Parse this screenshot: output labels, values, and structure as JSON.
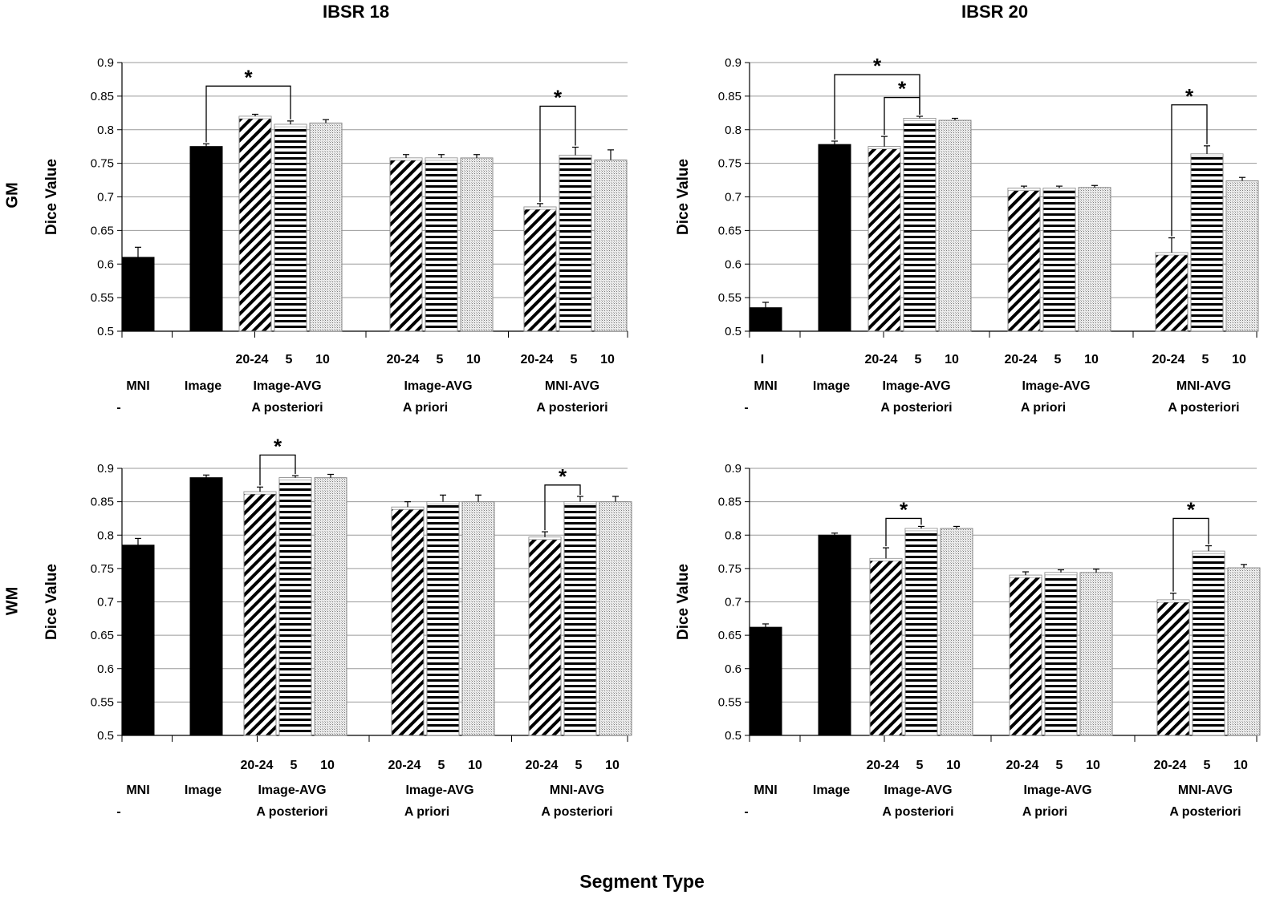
{
  "figure": {
    "col_titles": [
      "IBSR 18",
      "IBSR 20"
    ],
    "row_labels": [
      "GM",
      "WM"
    ],
    "x_title": "Segment Type"
  },
  "chart_data": [
    {
      "type": "bar",
      "panel": "IBSR 18 - GM",
      "row_label": "GM",
      "ylabel": "Dice Value",
      "ylim": [
        0.5,
        0.9
      ],
      "yticks": [
        "0.5",
        "0.55",
        "0.6",
        "0.65",
        "0.7",
        "0.75",
        "0.8",
        "0.85",
        "0.9"
      ],
      "grid": true,
      "groups": [
        {
          "label": "MNI",
          "sublabel": "-",
          "subcats": [],
          "bars": [
            {
              "value": 0.61,
              "err": 0.015,
              "pattern": "solid"
            }
          ]
        },
        {
          "label": "Image",
          "sublabel": "",
          "subcats": [],
          "bars": [
            {
              "value": 0.775,
              "err": 0.004,
              "pattern": "solid"
            }
          ]
        },
        {
          "label": "Image-AVG",
          "sublabel": "A posteriori",
          "subcats": [
            "20-24",
            "5",
            "10"
          ],
          "bars": [
            {
              "value": 0.82,
              "err": 0.003,
              "pattern": "diag"
            },
            {
              "value": 0.808,
              "err": 0.005,
              "pattern": "horiz"
            },
            {
              "value": 0.81,
              "err": 0.005,
              "pattern": "dots"
            }
          ]
        },
        {
          "label": "Image-AVG",
          "sublabel": "A priori",
          "subcats": [
            "20-24",
            "5",
            "10"
          ],
          "bars": [
            {
              "value": 0.758,
              "err": 0.005,
              "pattern": "diag"
            },
            {
              "value": 0.758,
              "err": 0.005,
              "pattern": "horiz"
            },
            {
              "value": 0.758,
              "err": 0.005,
              "pattern": "dots"
            }
          ]
        },
        {
          "label": "MNI-AVG",
          "sublabel": "A posteriori",
          "subcats": [
            "20-24",
            "5",
            "10"
          ],
          "bars": [
            {
              "value": 0.685,
              "err": 0.005,
              "pattern": "diag"
            },
            {
              "value": 0.762,
              "err": 0.012,
              "pattern": "horiz"
            },
            {
              "value": 0.755,
              "err": 0.015,
              "pattern": "dots"
            }
          ]
        }
      ],
      "significance": [
        {
          "from": [
            1,
            0
          ],
          "to": [
            2,
            1
          ],
          "top": 0.865,
          "label": "*"
        },
        {
          "from": [
            4,
            0
          ],
          "to": [
            4,
            1
          ],
          "top": 0.835,
          "label": "*"
        }
      ]
    },
    {
      "type": "bar",
      "panel": "IBSR 20 - GM",
      "row_label": "GM",
      "ylabel": "Dice Value",
      "ylim": [
        0.5,
        0.9
      ],
      "yticks": [
        "0.5",
        "0.55",
        "0.6",
        "0.65",
        "0.7",
        "0.75",
        "0.8",
        "0.85",
        "0.9"
      ],
      "grid": true,
      "groups": [
        {
          "label": "MNI",
          "sublabel": "-",
          "subcats": [
            "I"
          ],
          "bars": [
            {
              "value": 0.535,
              "err": 0.008,
              "pattern": "solid"
            }
          ]
        },
        {
          "label": "Image",
          "sublabel": "",
          "subcats": [],
          "bars": [
            {
              "value": 0.778,
              "err": 0.005,
              "pattern": "solid"
            }
          ]
        },
        {
          "label": "Image-AVG",
          "sublabel": "A posteriori",
          "subcats": [
            "20-24",
            "5",
            "10"
          ],
          "bars": [
            {
              "value": 0.775,
              "err": 0.015,
              "pattern": "diag"
            },
            {
              "value": 0.817,
              "err": 0.003,
              "pattern": "horiz"
            },
            {
              "value": 0.814,
              "err": 0.003,
              "pattern": "dots"
            }
          ]
        },
        {
          "label": "Image-AVG",
          "sublabel": "A priori",
          "subcats": [
            "20-24",
            "5",
            "10"
          ],
          "bars": [
            {
              "value": 0.713,
              "err": 0.003,
              "pattern": "diag"
            },
            {
              "value": 0.713,
              "err": 0.003,
              "pattern": "horiz"
            },
            {
              "value": 0.714,
              "err": 0.003,
              "pattern": "dots"
            }
          ]
        },
        {
          "label": "MNI-AVG",
          "sublabel": "A posteriori",
          "subcats": [
            "20-24",
            "5",
            "10"
          ],
          "bars": [
            {
              "value": 0.617,
              "err": 0.022,
              "pattern": "diag"
            },
            {
              "value": 0.764,
              "err": 0.012,
              "pattern": "horiz"
            },
            {
              "value": 0.724,
              "err": 0.005,
              "pattern": "dots"
            }
          ]
        }
      ],
      "significance": [
        {
          "from": [
            1,
            0
          ],
          "to": [
            2,
            1
          ],
          "top": 0.882,
          "label": "*"
        },
        {
          "from": [
            2,
            0
          ],
          "to": [
            2,
            1
          ],
          "top": 0.848,
          "label": "*"
        },
        {
          "from": [
            4,
            0
          ],
          "to": [
            4,
            1
          ],
          "top": 0.837,
          "label": "*"
        }
      ]
    },
    {
      "type": "bar",
      "panel": "IBSR 18 - WM",
      "row_label": "WM",
      "ylabel": "Dice Value",
      "ylim": [
        0.5,
        0.9
      ],
      "yticks": [
        "0.5",
        "0.55",
        "0.6",
        "0.65",
        "0.7",
        "0.75",
        "0.8",
        "0.85",
        "0.9"
      ],
      "grid": true,
      "groups": [
        {
          "label": "MNI",
          "sublabel": "-",
          "subcats": [],
          "bars": [
            {
              "value": 0.785,
              "err": 0.01,
              "pattern": "solid"
            }
          ]
        },
        {
          "label": "Image",
          "sublabel": "",
          "subcats": [],
          "bars": [
            {
              "value": 0.886,
              "err": 0.004,
              "pattern": "solid"
            }
          ]
        },
        {
          "label": "Image-AVG",
          "sublabel": "A posteriori",
          "subcats": [
            "20-24",
            "5",
            "10"
          ],
          "bars": [
            {
              "value": 0.865,
              "err": 0.007,
              "pattern": "diag"
            },
            {
              "value": 0.886,
              "err": 0.003,
              "pattern": "horiz"
            },
            {
              "value": 0.886,
              "err": 0.005,
              "pattern": "dots"
            }
          ]
        },
        {
          "label": "Image-AVG",
          "sublabel": "A priori",
          "subcats": [
            "20-24",
            "5",
            "10"
          ],
          "bars": [
            {
              "value": 0.842,
              "err": 0.008,
              "pattern": "diag"
            },
            {
              "value": 0.85,
              "err": 0.01,
              "pattern": "horiz"
            },
            {
              "value": 0.85,
              "err": 0.01,
              "pattern": "dots"
            }
          ]
        },
        {
          "label": "MNI-AVG",
          "sublabel": "A posteriori",
          "subcats": [
            "20-24",
            "5",
            "10"
          ],
          "bars": [
            {
              "value": 0.797,
              "err": 0.008,
              "pattern": "diag"
            },
            {
              "value": 0.85,
              "err": 0.008,
              "pattern": "horiz"
            },
            {
              "value": 0.85,
              "err": 0.008,
              "pattern": "dots"
            }
          ]
        }
      ],
      "significance": [
        {
          "from": [
            2,
            0
          ],
          "to": [
            2,
            1
          ],
          "top": 0.92,
          "label": "*"
        },
        {
          "from": [
            4,
            0
          ],
          "to": [
            4,
            1
          ],
          "top": 0.875,
          "label": "*"
        }
      ]
    },
    {
      "type": "bar",
      "panel": "IBSR 20 - WM",
      "row_label": "WM",
      "ylabel": "Dice Value",
      "ylim": [
        0.5,
        0.9
      ],
      "yticks": [
        "0.5",
        "0.55",
        "0.6",
        "0.65",
        "0.7",
        "0.75",
        "0.8",
        "0.85",
        "0.9"
      ],
      "grid": true,
      "groups": [
        {
          "label": "MNI",
          "sublabel": "-",
          "subcats": [],
          "bars": [
            {
              "value": 0.662,
              "err": 0.005,
              "pattern": "solid"
            }
          ]
        },
        {
          "label": "Image",
          "sublabel": "",
          "subcats": [],
          "bars": [
            {
              "value": 0.8,
              "err": 0.003,
              "pattern": "solid"
            }
          ]
        },
        {
          "label": "Image-AVG",
          "sublabel": "A posteriori",
          "subcats": [
            "20-24",
            "5",
            "10"
          ],
          "bars": [
            {
              "value": 0.765,
              "err": 0.016,
              "pattern": "diag"
            },
            {
              "value": 0.81,
              "err": 0.003,
              "pattern": "horiz"
            },
            {
              "value": 0.81,
              "err": 0.003,
              "pattern": "dots"
            }
          ]
        },
        {
          "label": "Image-AVG",
          "sublabel": "A priori",
          "subcats": [
            "20-24",
            "5",
            "10"
          ],
          "bars": [
            {
              "value": 0.74,
              "err": 0.005,
              "pattern": "diag"
            },
            {
              "value": 0.744,
              "err": 0.004,
              "pattern": "horiz"
            },
            {
              "value": 0.744,
              "err": 0.005,
              "pattern": "dots"
            }
          ]
        },
        {
          "label": "MNI-AVG",
          "sublabel": "A posteriori",
          "subcats": [
            "20-24",
            "5",
            "10"
          ],
          "bars": [
            {
              "value": 0.703,
              "err": 0.01,
              "pattern": "diag"
            },
            {
              "value": 0.776,
              "err": 0.008,
              "pattern": "horiz"
            },
            {
              "value": 0.751,
              "err": 0.005,
              "pattern": "dots"
            }
          ]
        }
      ],
      "significance": [
        {
          "from": [
            2,
            0
          ],
          "to": [
            2,
            1
          ],
          "top": 0.825,
          "label": "*"
        },
        {
          "from": [
            4,
            0
          ],
          "to": [
            4,
            1
          ],
          "top": 0.825,
          "label": "*"
        }
      ]
    }
  ]
}
